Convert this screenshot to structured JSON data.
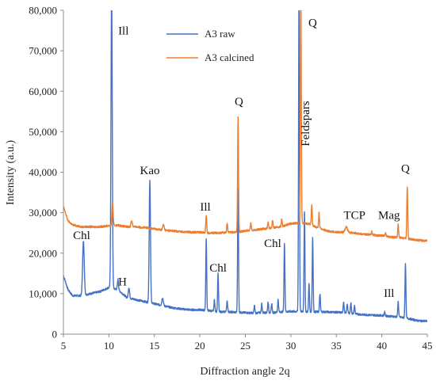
{
  "chart_data": {
    "type": "line",
    "title": "",
    "xlabel": "Diffraction angle 2q",
    "ylabel": "Intensity (a.u.)",
    "xlim": [
      5,
      45
    ],
    "ylim": [
      0,
      80000
    ],
    "x_ticks": [
      5,
      10,
      15,
      20,
      25,
      30,
      35,
      40,
      45
    ],
    "y_ticks": [
      0,
      10000,
      20000,
      30000,
      40000,
      50000,
      60000,
      70000,
      80000
    ],
    "y_tick_labels": [
      "0",
      "10,000",
      "20,000",
      "30,000",
      "40,000",
      "50,000",
      "60,000",
      "70,000",
      "80,000"
    ],
    "grid": false,
    "legend": {
      "position": "top-center",
      "entries": [
        "A3 raw",
        "A3 calcined"
      ]
    },
    "series": [
      {
        "name": "A3 raw",
        "color": "#4472C4",
        "baseline": [
          [
            5,
            14500
          ],
          [
            5.5,
            11000
          ],
          [
            6,
            9500
          ],
          [
            7,
            9500
          ],
          [
            8,
            10000
          ],
          [
            9,
            10500
          ],
          [
            10,
            11500
          ],
          [
            11,
            11000
          ],
          [
            12,
            9000
          ],
          [
            13,
            8500
          ],
          [
            14,
            8000
          ],
          [
            15,
            7500
          ],
          [
            16,
            7000
          ],
          [
            17,
            6500
          ],
          [
            18,
            6200
          ],
          [
            19,
            6000
          ],
          [
            20,
            6000
          ],
          [
            21,
            5800
          ],
          [
            22,
            5500
          ],
          [
            23,
            5500
          ],
          [
            24,
            5400
          ],
          [
            25,
            5300
          ],
          [
            26,
            5200
          ],
          [
            27,
            5300
          ],
          [
            28,
            5300
          ],
          [
            29,
            5500
          ],
          [
            30,
            5600
          ],
          [
            31,
            5600
          ],
          [
            32,
            5500
          ],
          [
            33,
            5500
          ],
          [
            34,
            5500
          ],
          [
            35,
            5400
          ],
          [
            36,
            5300
          ],
          [
            37,
            5000
          ],
          [
            38,
            4800
          ],
          [
            39,
            4700
          ],
          [
            40,
            4600
          ],
          [
            41,
            4400
          ],
          [
            42,
            4200
          ],
          [
            43,
            3800
          ],
          [
            44,
            3300
          ],
          [
            45,
            3200
          ]
        ],
        "peaks": [
          {
            "x": 7.2,
            "h": 23000,
            "w": 0.09
          },
          {
            "x": 10.3,
            "h": 85000,
            "w": 0.07
          },
          {
            "x": 11.0,
            "h": 13500,
            "w": 0.06
          },
          {
            "x": 12.2,
            "h": 11500,
            "w": 0.07
          },
          {
            "x": 14.5,
            "h": 38000,
            "w": 0.07
          },
          {
            "x": 15.9,
            "h": 9000,
            "w": 0.08
          },
          {
            "x": 20.7,
            "h": 23500,
            "w": 0.05
          },
          {
            "x": 21.6,
            "h": 8500,
            "w": 0.05
          },
          {
            "x": 22.0,
            "h": 15000,
            "w": 0.05
          },
          {
            "x": 23.0,
            "h": 8000,
            "w": 0.06
          },
          {
            "x": 24.2,
            "h": 36000,
            "w": 0.05
          },
          {
            "x": 26.0,
            "h": 7000,
            "w": 0.05
          },
          {
            "x": 26.8,
            "h": 7500,
            "w": 0.05
          },
          {
            "x": 27.5,
            "h": 8000,
            "w": 0.05
          },
          {
            "x": 27.9,
            "h": 7500,
            "w": 0.05
          },
          {
            "x": 28.6,
            "h": 8500,
            "w": 0.05
          },
          {
            "x": 29.3,
            "h": 22500,
            "w": 0.05
          },
          {
            "x": 30.9,
            "h": 85000,
            "w": 0.05
          },
          {
            "x": 31.5,
            "h": 30000,
            "w": 0.05
          },
          {
            "x": 32.0,
            "h": 12500,
            "w": 0.05
          },
          {
            "x": 32.4,
            "h": 24000,
            "w": 0.05
          },
          {
            "x": 33.2,
            "h": 10000,
            "w": 0.05
          },
          {
            "x": 35.8,
            "h": 8000,
            "w": 0.05
          },
          {
            "x": 36.2,
            "h": 7500,
            "w": 0.05
          },
          {
            "x": 36.6,
            "h": 7800,
            "w": 0.05
          },
          {
            "x": 37.0,
            "h": 7000,
            "w": 0.05
          },
          {
            "x": 40.3,
            "h": 5500,
            "w": 0.05
          },
          {
            "x": 41.8,
            "h": 8000,
            "w": 0.05
          },
          {
            "x": 42.6,
            "h": 17500,
            "w": 0.05
          }
        ]
      },
      {
        "name": "A3 calcined",
        "color": "#ED7D31",
        "baseline": [
          [
            5,
            31500
          ],
          [
            5.5,
            28000
          ],
          [
            6,
            27000
          ],
          [
            7,
            26500
          ],
          [
            8,
            26500
          ],
          [
            9,
            26500
          ],
          [
            10,
            26800
          ],
          [
            11,
            26900
          ],
          [
            12,
            26500
          ],
          [
            13,
            26500
          ],
          [
            14,
            26300
          ],
          [
            15,
            26000
          ],
          [
            16,
            25700
          ],
          [
            17,
            25500
          ],
          [
            18,
            25300
          ],
          [
            19,
            25200
          ],
          [
            20,
            25200
          ],
          [
            21,
            25000
          ],
          [
            22,
            25000
          ],
          [
            23,
            25100
          ],
          [
            24,
            25200
          ],
          [
            25,
            25500
          ],
          [
            26,
            25700
          ],
          [
            27,
            26000
          ],
          [
            28,
            26300
          ],
          [
            29,
            26600
          ],
          [
            30,
            27300
          ],
          [
            31,
            27500
          ],
          [
            32,
            27200
          ],
          [
            33,
            26200
          ],
          [
            34,
            25500
          ],
          [
            35,
            25200
          ],
          [
            36,
            25200
          ],
          [
            37,
            25000
          ],
          [
            38,
            24700
          ],
          [
            39,
            24500
          ],
          [
            40,
            24300
          ],
          [
            41,
            24000
          ],
          [
            42,
            23800
          ],
          [
            43,
            23500
          ],
          [
            44,
            23200
          ],
          [
            45,
            23000
          ]
        ],
        "peaks": [
          {
            "x": 10.4,
            "h": 32500,
            "w": 0.06
          },
          {
            "x": 12.5,
            "h": 28000,
            "w": 0.08
          },
          {
            "x": 16.0,
            "h": 27000,
            "w": 0.08
          },
          {
            "x": 20.7,
            "h": 29500,
            "w": 0.05
          },
          {
            "x": 23.0,
            "h": 27500,
            "w": 0.05
          },
          {
            "x": 24.2,
            "h": 53500,
            "w": 0.05
          },
          {
            "x": 25.6,
            "h": 27500,
            "w": 0.05
          },
          {
            "x": 27.5,
            "h": 27700,
            "w": 0.05
          },
          {
            "x": 28.0,
            "h": 28000,
            "w": 0.05
          },
          {
            "x": 29.0,
            "h": 28500,
            "w": 0.05
          },
          {
            "x": 31.1,
            "h": 85000,
            "w": 0.05
          },
          {
            "x": 32.3,
            "h": 32000,
            "w": 0.05
          },
          {
            "x": 33.1,
            "h": 30000,
            "w": 0.05
          },
          {
            "x": 36.1,
            "h": 26500,
            "w": 0.12
          },
          {
            "x": 38.9,
            "h": 25300,
            "w": 0.05
          },
          {
            "x": 40.4,
            "h": 25000,
            "w": 0.05
          },
          {
            "x": 41.8,
            "h": 27000,
            "w": 0.05
          },
          {
            "x": 42.8,
            "h": 36500,
            "w": 0.05
          }
        ]
      }
    ],
    "annotations": [
      {
        "text": "Ill",
        "x": 11.6,
        "y": 74000
      },
      {
        "text": "Q",
        "x": 32.4,
        "y": 76000
      },
      {
        "text": "Q",
        "x": 24.3,
        "y": 56500
      },
      {
        "text": "Kao",
        "x": 14.5,
        "y": 39500
      },
      {
        "text": "Ill",
        "x": 20.6,
        "y": 30500
      },
      {
        "text": "Chl",
        "x": 7.0,
        "y": 23500
      },
      {
        "text": "H",
        "x": 11.5,
        "y": 12000
      },
      {
        "text": "Chl",
        "x": 22.0,
        "y": 15500
      },
      {
        "text": "Chl",
        "x": 28.0,
        "y": 21500
      },
      {
        "text": "TCP",
        "x": 37.0,
        "y": 28500
      },
      {
        "text": "Mag",
        "x": 40.8,
        "y": 28500
      },
      {
        "text": "Q",
        "x": 42.6,
        "y": 40000
      },
      {
        "text": "Ill",
        "x": 40.8,
        "y": 9200
      },
      {
        "text": "Feldspars",
        "x": 32.0,
        "y": 52000,
        "rotate": -90
      }
    ]
  }
}
